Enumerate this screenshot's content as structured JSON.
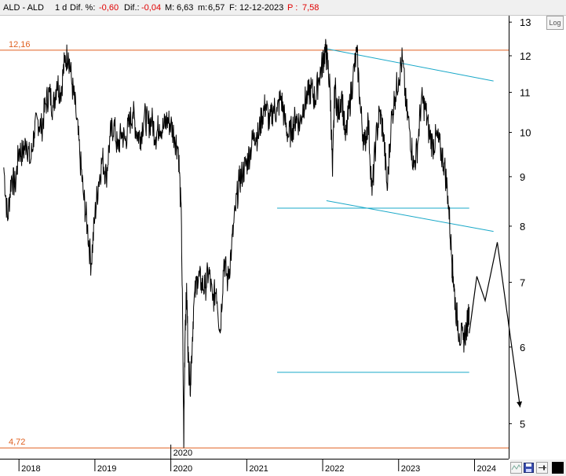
{
  "header": {
    "symbol": "ALD - ALD",
    "period": "1 d",
    "dif_pct_label": "Dif. %:",
    "dif_pct_value": "-0,60",
    "dif_label": "Dif.:",
    "dif_value": "-0,04",
    "max_label": "M:",
    "max_value": "6,63",
    "min_label": "m:",
    "min_value": "6,57",
    "date_label": "F:",
    "date_value": "12-12-2023",
    "price_label": "P :",
    "price_value": "7,58"
  },
  "log_button_label": "Log",
  "colors": {
    "price": "#000000",
    "level_lines": "#e06020",
    "trend_lines": "#19a8c8",
    "negative": "#e00000"
  },
  "chart_data": {
    "type": "line",
    "y_scale": "log",
    "ylim": [
      4.6,
      13.2
    ],
    "y_ticks": [
      5,
      6,
      7,
      8,
      9,
      10,
      11,
      12,
      13
    ],
    "xlim": [
      2017.75,
      2024.45
    ],
    "x_ticks": [
      2018,
      2019,
      2020,
      2021,
      2022,
      2023,
      2024
    ],
    "x_tick_labels": [
      "2018",
      "2019",
      "2020",
      "2021",
      "2022",
      "2023",
      "2024"
    ],
    "grid": false,
    "legend": "none",
    "level_lines": [
      {
        "label": "12,16",
        "value": 12.16
      },
      {
        "label": "4,72",
        "value": 4.72
      }
    ],
    "annotations": [
      {
        "text": "2020",
        "x": 2020.0
      }
    ],
    "price_series": {
      "x": [
        2017.8,
        2017.85,
        2017.9,
        2017.95,
        2018.0,
        2018.05,
        2018.1,
        2018.15,
        2018.2,
        2018.25,
        2018.3,
        2018.35,
        2018.4,
        2018.45,
        2018.5,
        2018.55,
        2018.6,
        2018.65,
        2018.7,
        2018.75,
        2018.8,
        2018.85,
        2018.9,
        2018.95,
        2019.0,
        2019.05,
        2019.1,
        2019.15,
        2019.2,
        2019.25,
        2019.3,
        2019.35,
        2019.4,
        2019.45,
        2019.5,
        2019.55,
        2019.6,
        2019.65,
        2019.7,
        2019.75,
        2019.8,
        2019.85,
        2019.9,
        2019.95,
        2020.0,
        2020.05,
        2020.1,
        2020.14,
        2020.17,
        2020.19,
        2020.21,
        2020.23,
        2020.26,
        2020.3,
        2020.35,
        2020.4,
        2020.45,
        2020.5,
        2020.55,
        2020.6,
        2020.65,
        2020.7,
        2020.75,
        2020.8,
        2020.85,
        2020.9,
        2020.95,
        2021.0,
        2021.05,
        2021.1,
        2021.15,
        2021.2,
        2021.25,
        2021.3,
        2021.35,
        2021.4,
        2021.45,
        2021.5,
        2021.55,
        2021.6,
        2021.65,
        2021.7,
        2021.75,
        2021.8,
        2021.85,
        2021.9,
        2021.95,
        2022.0,
        2022.03,
        2022.06,
        2022.1,
        2022.13,
        2022.16,
        2022.2,
        2022.25,
        2022.3,
        2022.35,
        2022.4,
        2022.45,
        2022.5,
        2022.55,
        2022.6,
        2022.65,
        2022.7,
        2022.75,
        2022.8,
        2022.85,
        2022.9,
        2022.95,
        2023.0,
        2023.05,
        2023.1,
        2023.15,
        2023.2,
        2023.25,
        2023.3,
        2023.35,
        2023.4,
        2023.45,
        2023.5,
        2023.55,
        2023.6,
        2023.65,
        2023.7,
        2023.72,
        2023.75,
        2023.8,
        2023.85,
        2023.9,
        2023.93
      ],
      "y": [
        9.2,
        8.1,
        9.0,
        8.8,
        9.6,
        9.5,
        9.8,
        9.3,
        10.0,
        10.3,
        10.1,
        10.7,
        11.0,
        10.6,
        11.3,
        11.0,
        11.8,
        12.1,
        11.2,
        10.5,
        9.5,
        8.6,
        8.0,
        7.3,
        8.2,
        8.9,
        9.4,
        9.0,
        9.9,
        10.2,
        9.6,
        10.0,
        9.8,
        10.2,
        10.5,
        10.0,
        9.9,
        10.4,
        10.2,
        10.3,
        9.9,
        10.2,
        10.1,
        10.3,
        10.2,
        9.9,
        9.6,
        8.0,
        4.72,
        6.4,
        6.8,
        5.8,
        5.5,
        6.6,
        7.1,
        7.0,
        6.9,
        7.2,
        6.7,
        6.9,
        6.2,
        7.4,
        7.0,
        7.6,
        8.3,
        8.9,
        9.1,
        9.3,
        9.6,
        10.0,
        9.9,
        10.4,
        10.7,
        10.2,
        10.6,
        10.5,
        10.9,
        10.3,
        9.9,
        10.1,
        10.4,
        10.2,
        10.7,
        10.9,
        11.1,
        10.8,
        11.4,
        11.8,
        12.15,
        11.9,
        11.0,
        9.0,
        11.2,
        10.4,
        11.0,
        9.8,
        10.6,
        11.4,
        12.1,
        10.5,
        9.7,
        10.3,
        8.6,
        9.8,
        10.5,
        10.0,
        8.7,
        10.2,
        10.9,
        11.4,
        11.9,
        10.6,
        10.0,
        9.2,
        9.7,
        10.8,
        10.6,
        10.0,
        9.7,
        9.9,
        9.6,
        9.3,
        8.6,
        7.4,
        7.1,
        6.6,
        6.2,
        6.1,
        6.3,
        6.6
      ],
      "color": "#000000"
    },
    "projection": {
      "x": [
        2023.93,
        2024.03,
        2024.14,
        2024.3,
        2024.6
      ],
      "y": [
        6.2,
        7.1,
        6.7,
        7.7,
        5.2
      ],
      "color": "#000000"
    },
    "trend_lines": [
      {
        "x": [
          2022.05,
          2024.25
        ],
        "y": [
          12.2,
          11.3
        ]
      },
      {
        "x": [
          2022.05,
          2024.25
        ],
        "y": [
          8.5,
          7.9
        ]
      },
      {
        "x": [
          2021.4,
          2023.93
        ],
        "y": [
          8.35,
          8.35
        ]
      },
      {
        "x": [
          2021.4,
          2023.93
        ],
        "y": [
          5.65,
          5.65
        ]
      }
    ]
  }
}
